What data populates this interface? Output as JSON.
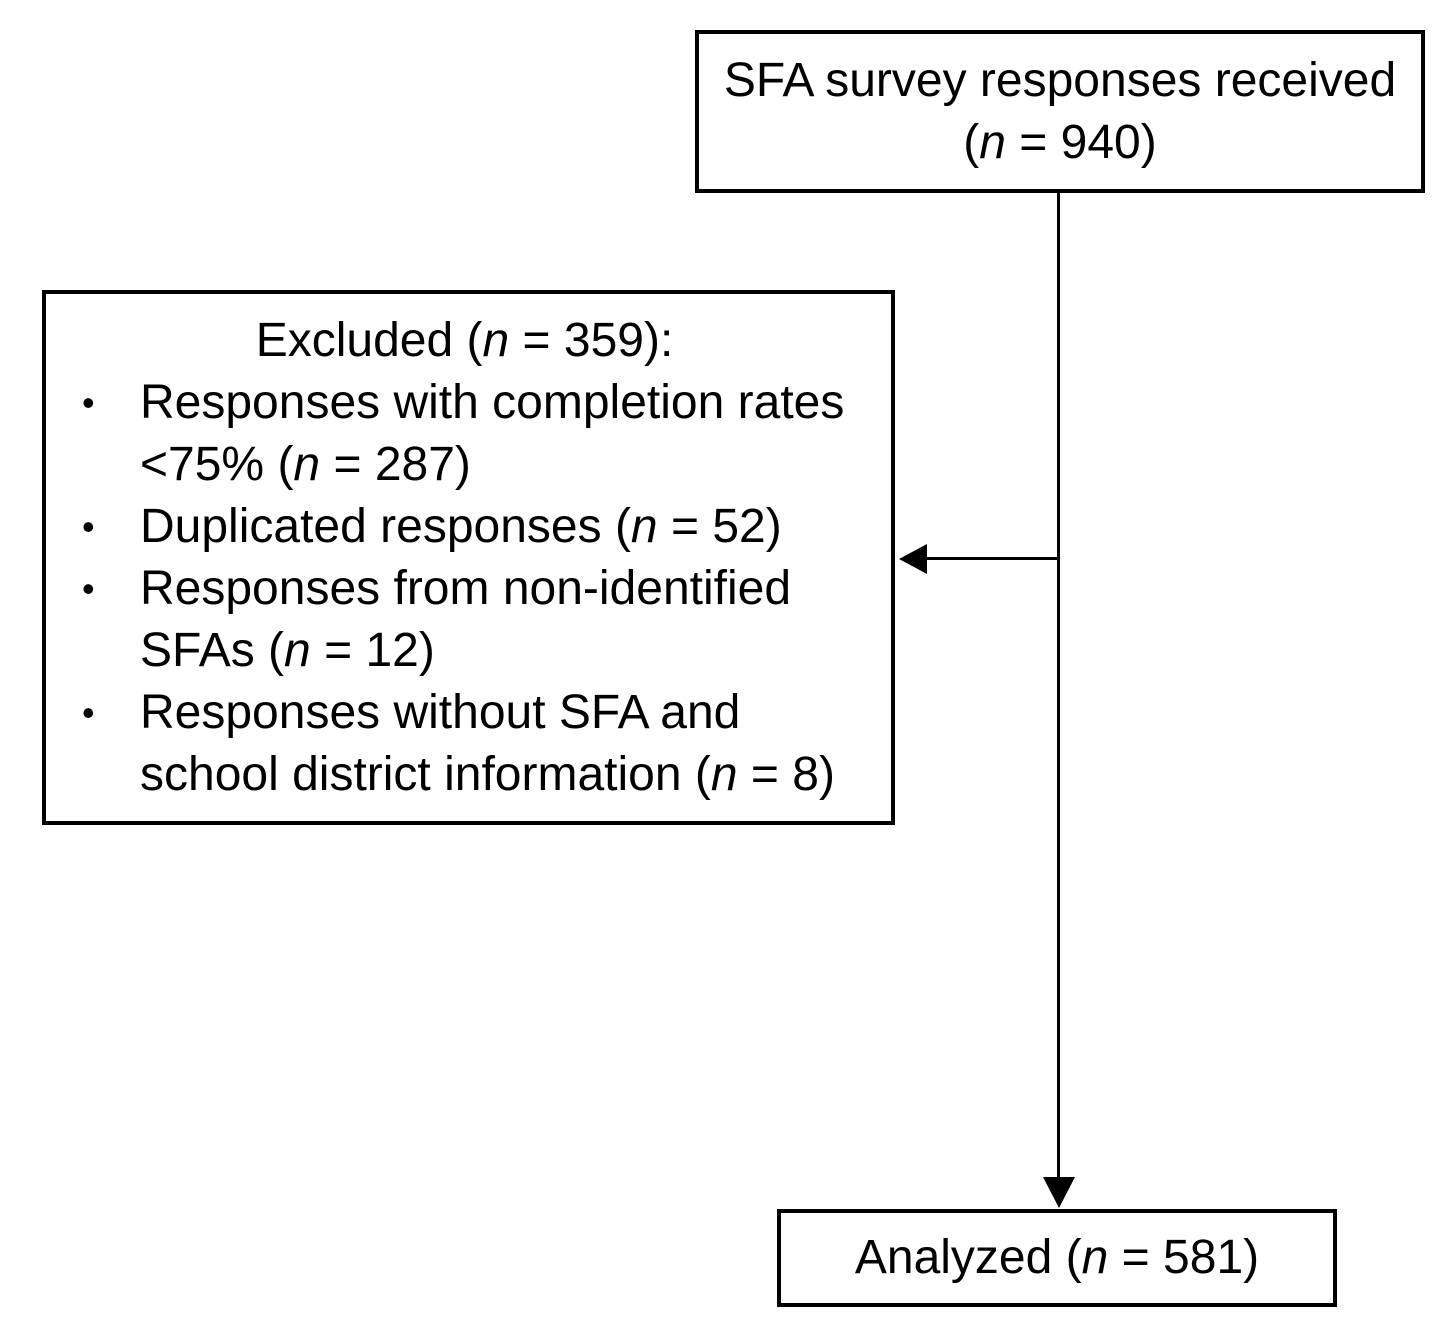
{
  "diagram": {
    "background_color": "#ffffff",
    "line_color": "#000000",
    "text_color": "#000000",
    "received_box": {
      "line1": "SFA survey responses received",
      "count": {
        "before": "(",
        "n": "n",
        "after": " = 940)"
      }
    },
    "excluded_box": {
      "title": {
        "before": "Excluded (",
        "n": "n",
        "after": " = 359):"
      },
      "bullet_glyph": "•",
      "bullets": [
        {
          "before": "Responses with completion rates\n<75% (",
          "n": "n",
          "after": " = 287)"
        },
        {
          "before": "Duplicated responses (",
          "n": "n",
          "after": " = 52)"
        },
        {
          "before": "Responses from non-identified\nSFAs (",
          "n": "n",
          "after": " = 12)"
        },
        {
          "before": "Responses without SFA and\nschool district information (",
          "n": "n",
          "after": " = 8)"
        }
      ]
    },
    "analyzed_box": {
      "before": "Analyzed (",
      "n": "n",
      "after": " = 581)"
    }
  }
}
